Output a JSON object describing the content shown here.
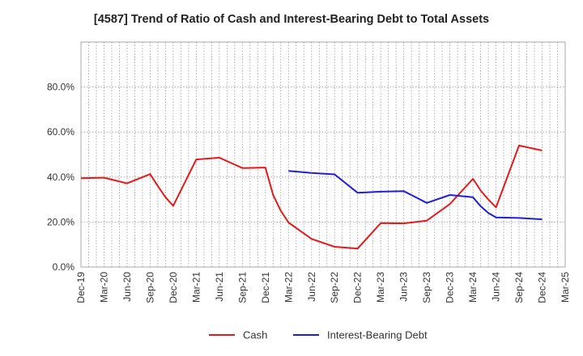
{
  "chart_data": {
    "type": "line",
    "title": "[4587]  Trend of Ratio of Cash and Interest-Bearing Debt to Total Assets",
    "xlabel": "",
    "ylabel": "",
    "x_ticks": [
      "Dec-19",
      "Mar-20",
      "Jun-20",
      "Sep-20",
      "Dec-20",
      "Mar-21",
      "Jun-21",
      "Sep-21",
      "Dec-21",
      "Mar-22",
      "Jun-22",
      "Sep-22",
      "Dec-22",
      "Mar-23",
      "Jun-23",
      "Sep-23",
      "Dec-23",
      "Mar-24",
      "Jun-24",
      "Sep-24",
      "Dec-24",
      "Mar-25"
    ],
    "y_ticks": [
      "0.0%",
      "20.0%",
      "40.0%",
      "60.0%",
      "80.0%"
    ],
    "ylim": [
      0,
      100
    ],
    "grid": true,
    "legend_position": "bottom",
    "series": [
      {
        "name": "Cash",
        "color": "#e31a1c",
        "points": [
          {
            "x": "2019-12",
            "y": 39.5
          },
          {
            "x": "2020-03",
            "y": 39.7
          },
          {
            "x": "2020-06",
            "y": 37.2
          },
          {
            "x": "2020-09",
            "y": 41.3
          },
          {
            "x": "2020-10",
            "y": 36.0
          },
          {
            "x": "2020-11",
            "y": 31.0
          },
          {
            "x": "2020-12",
            "y": 27.2
          },
          {
            "x": "2021-03",
            "y": 47.8
          },
          {
            "x": "2021-06",
            "y": 48.6
          },
          {
            "x": "2021-09",
            "y": 44.0
          },
          {
            "x": "2021-12",
            "y": 44.2
          },
          {
            "x": "2022-01",
            "y": 32.0
          },
          {
            "x": "2022-02",
            "y": 25.0
          },
          {
            "x": "2022-03",
            "y": 19.8
          },
          {
            "x": "2022-06",
            "y": 12.5
          },
          {
            "x": "2022-09",
            "y": 9.0
          },
          {
            "x": "2022-12",
            "y": 8.2
          },
          {
            "x": "2023-03",
            "y": 19.5
          },
          {
            "x": "2023-06",
            "y": 19.4
          },
          {
            "x": "2023-09",
            "y": 20.6
          },
          {
            "x": "2023-12",
            "y": 28.0
          },
          {
            "x": "2024-03",
            "y": 39.2
          },
          {
            "x": "2024-04",
            "y": 34.0
          },
          {
            "x": "2024-05",
            "y": 30.0
          },
          {
            "x": "2024-06",
            "y": 26.5
          },
          {
            "x": "2024-09",
            "y": 54.0
          },
          {
            "x": "2024-12",
            "y": 51.8
          }
        ]
      },
      {
        "name": "Interest-Bearing Debt",
        "color": "#1f1fd6",
        "points": [
          {
            "x": "2022-03",
            "y": 42.7
          },
          {
            "x": "2022-06",
            "y": 41.8
          },
          {
            "x": "2022-09",
            "y": 41.2
          },
          {
            "x": "2022-12",
            "y": 33.0
          },
          {
            "x": "2023-03",
            "y": 33.5
          },
          {
            "x": "2023-06",
            "y": 33.7
          },
          {
            "x": "2023-09",
            "y": 28.5
          },
          {
            "x": "2023-12",
            "y": 32.0
          },
          {
            "x": "2024-03",
            "y": 31.0
          },
          {
            "x": "2024-04",
            "y": 27.0
          },
          {
            "x": "2024-05",
            "y": 24.0
          },
          {
            "x": "2024-06",
            "y": 22.0
          },
          {
            "x": "2024-09",
            "y": 21.8
          },
          {
            "x": "2024-12",
            "y": 21.2
          }
        ]
      }
    ]
  }
}
